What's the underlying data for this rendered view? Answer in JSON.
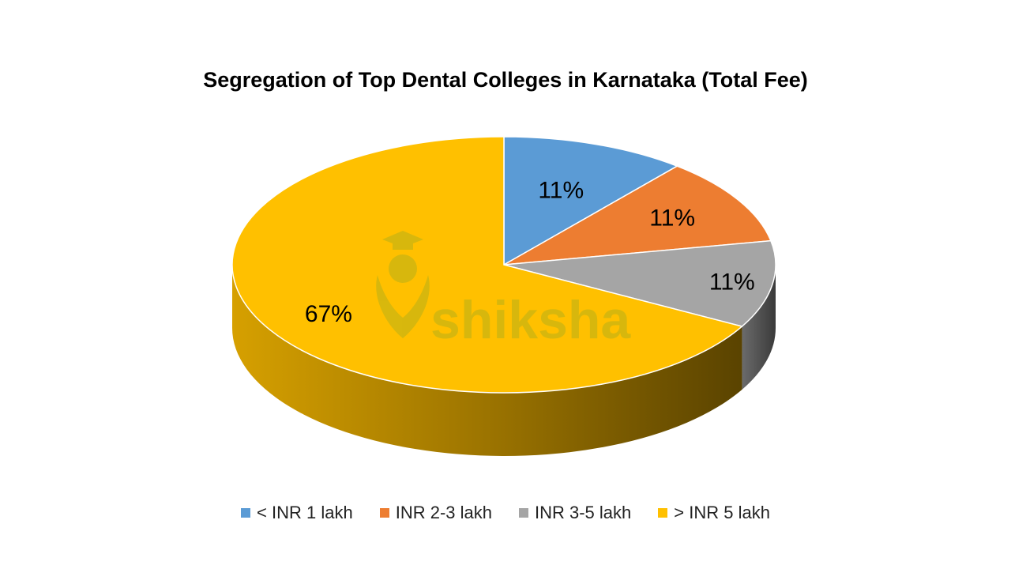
{
  "colors": {
    "blue": "#5b9bd5",
    "orange": "#ed7d31",
    "gray": "#a5a5a5",
    "gold": "#ffc000"
  },
  "chart_data": {
    "type": "pie",
    "variant": "3d",
    "title": "Segregation of Top Dental Colleges in Karnataka (Total Fee)",
    "legend_position": "bottom",
    "categories": [
      "< INR 1 lakh",
      "INR 2-3 lakh",
      "INR 3-5 lakh",
      "> INR 5 lakh"
    ],
    "values": [
      11,
      11,
      11,
      67
    ],
    "labels": [
      "11%",
      "11%",
      "11%",
      "67%"
    ],
    "colors": [
      "#5b9bd5",
      "#ed7d31",
      "#a5a5a5",
      "#ffc000"
    ]
  },
  "watermark": {
    "text": "shiksha"
  }
}
